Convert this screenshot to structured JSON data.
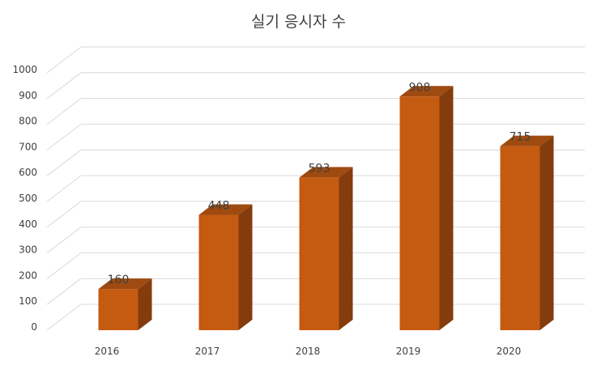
{
  "chart_data": {
    "type": "bar",
    "title": "실기 응시자 수",
    "xlabel": "",
    "ylabel": "",
    "categories": [
      "2016",
      "2017",
      "2018",
      "2019",
      "2020"
    ],
    "values": [
      160,
      448,
      593,
      908,
      715
    ],
    "ylim": [
      0,
      1000
    ],
    "yticks": [
      0,
      100,
      200,
      300,
      400,
      500,
      600,
      700,
      800,
      900,
      1000
    ],
    "grid": true,
    "three_d": true,
    "data_labels": true,
    "colors": {
      "bar_front": "#C55A11",
      "bar_side": "#843C0C",
      "bar_top": "#9E4A10",
      "grid": "#D9D9D9",
      "text": "#404040"
    }
  }
}
